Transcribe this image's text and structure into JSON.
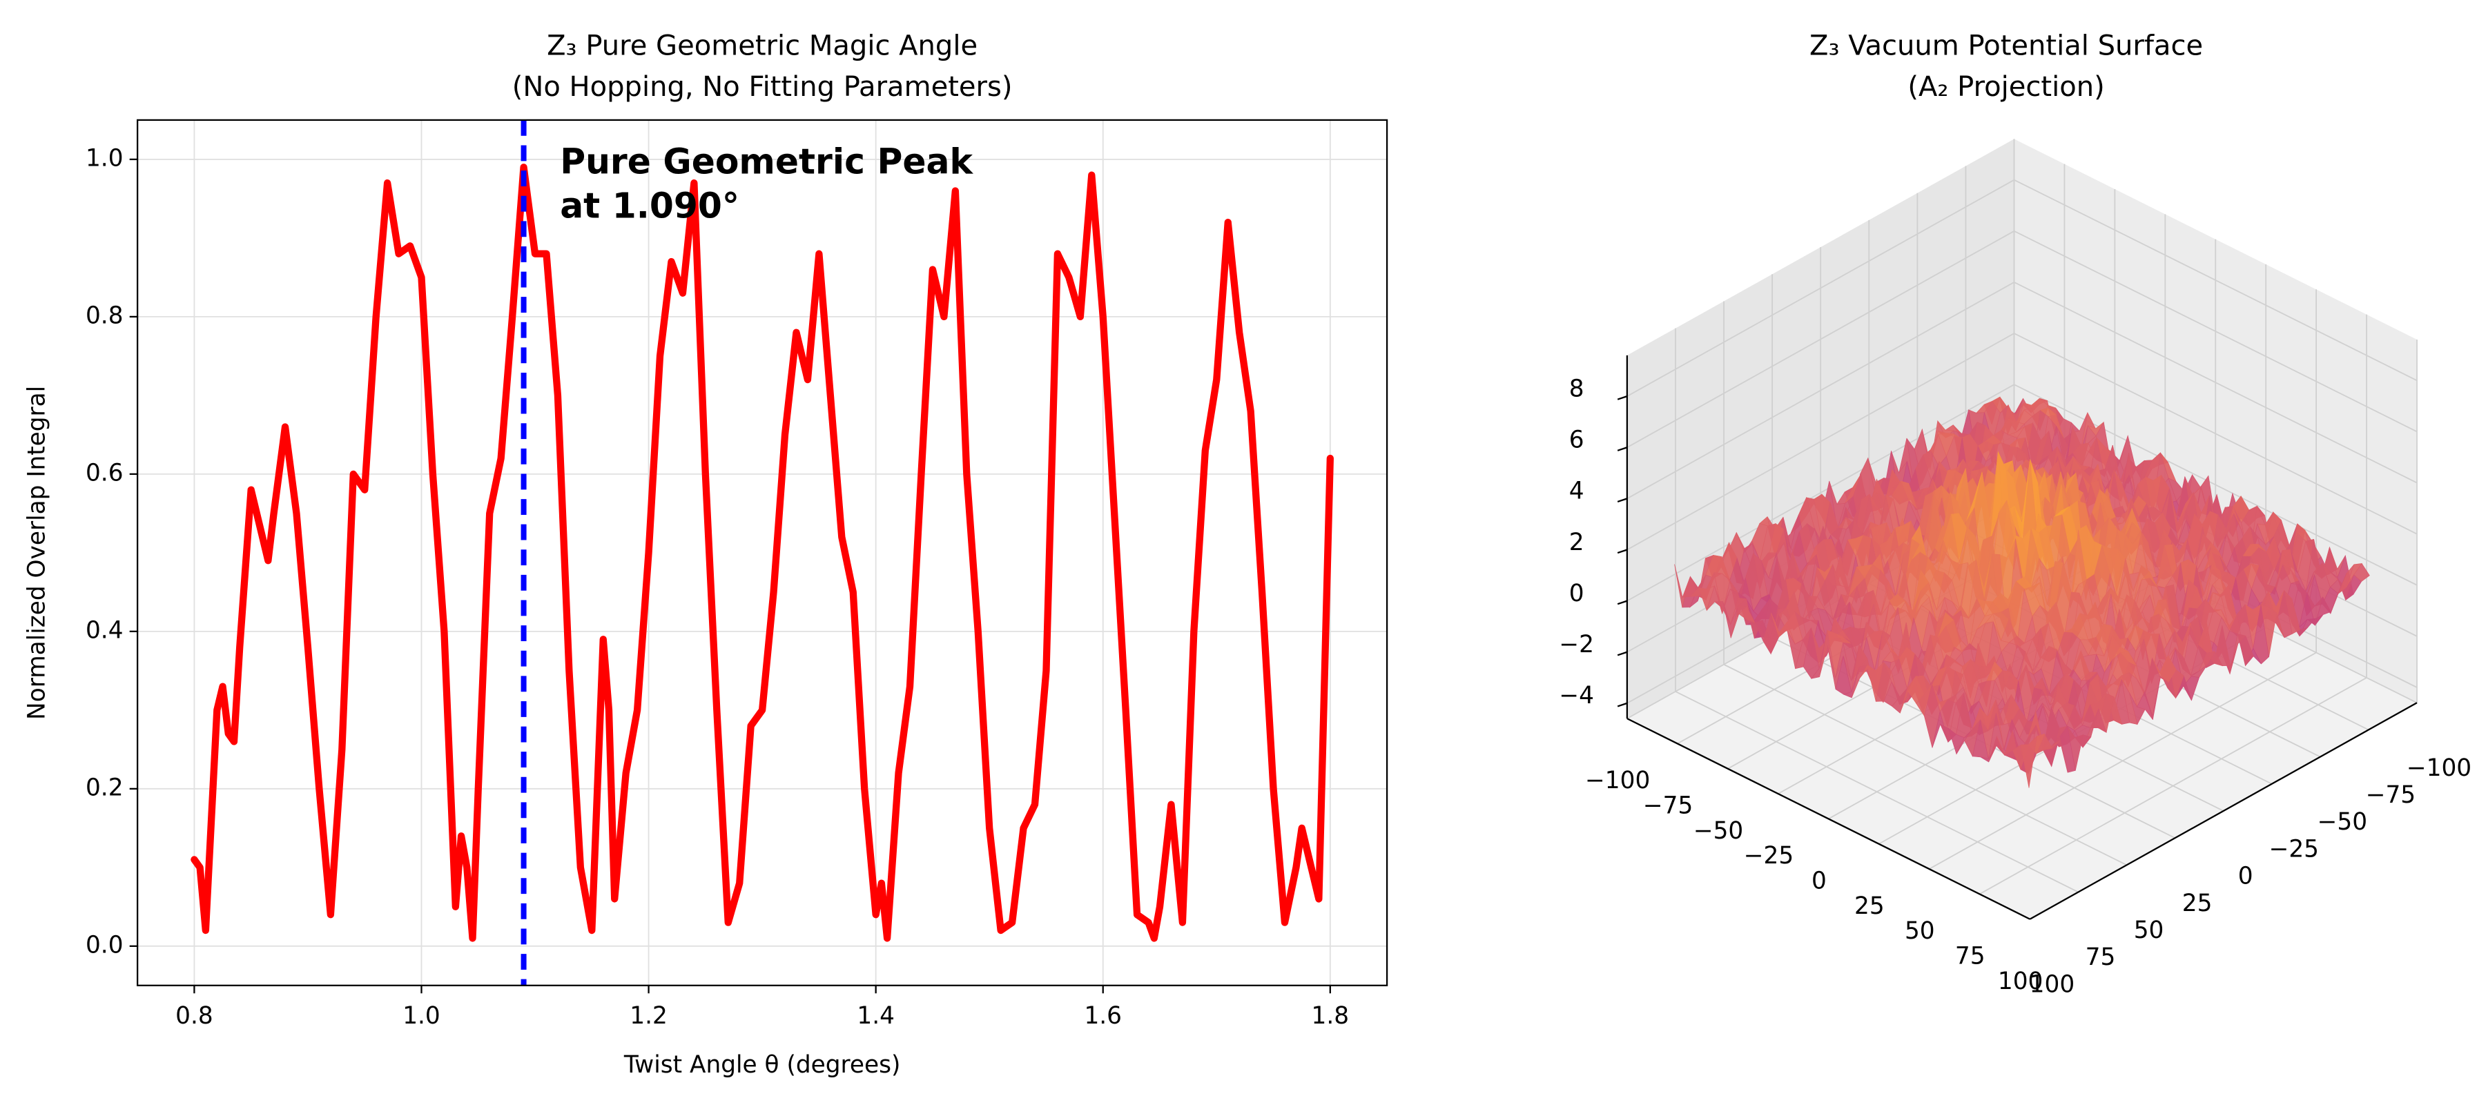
{
  "chart_data": [
    {
      "type": "line",
      "title": [
        "Z₃ Pure Geometric Magic Angle",
        "(No Hopping, No Fitting Parameters)"
      ],
      "xlabel": "Twist Angle θ (degrees)",
      "ylabel": "Normalized Overlap Integral",
      "color": "red",
      "x": [
        0.8,
        0.805,
        0.81,
        0.82,
        0.825,
        0.83,
        0.835,
        0.84,
        0.85,
        0.86,
        0.865,
        0.87,
        0.88,
        0.89,
        0.9,
        0.91,
        0.92,
        0.93,
        0.94,
        0.95,
        0.96,
        0.97,
        0.98,
        0.99,
        1.0,
        1.01,
        1.02,
        1.03,
        1.035,
        1.04,
        1.045,
        1.05,
        1.06,
        1.07,
        1.08,
        1.09,
        1.1,
        1.11,
        1.12,
        1.13,
        1.14,
        1.15,
        1.16,
        1.165,
        1.17,
        1.18,
        1.19,
        1.2,
        1.21,
        1.22,
        1.23,
        1.24,
        1.25,
        1.26,
        1.27,
        1.28,
        1.29,
        1.3,
        1.31,
        1.32,
        1.33,
        1.34,
        1.35,
        1.36,
        1.37,
        1.38,
        1.39,
        1.4,
        1.405,
        1.41,
        1.42,
        1.43,
        1.44,
        1.45,
        1.46,
        1.47,
        1.48,
        1.49,
        1.5,
        1.51,
        1.52,
        1.53,
        1.54,
        1.55,
        1.56,
        1.57,
        1.58,
        1.59,
        1.6,
        1.61,
        1.62,
        1.63,
        1.64,
        1.645,
        1.65,
        1.66,
        1.67,
        1.68,
        1.69,
        1.7,
        1.71,
        1.72,
        1.73,
        1.74,
        1.75,
        1.76,
        1.77,
        1.775,
        1.78,
        1.79,
        1.8
      ],
      "values": [
        0.11,
        0.1,
        0.02,
        0.3,
        0.33,
        0.27,
        0.26,
        0.38,
        0.58,
        0.52,
        0.49,
        0.55,
        0.66,
        0.55,
        0.38,
        0.2,
        0.04,
        0.25,
        0.6,
        0.58,
        0.8,
        0.97,
        0.88,
        0.89,
        0.85,
        0.6,
        0.4,
        0.05,
        0.14,
        0.1,
        0.01,
        0.2,
        0.55,
        0.62,
        0.8,
        0.99,
        0.88,
        0.88,
        0.7,
        0.35,
        0.1,
        0.02,
        0.39,
        0.3,
        0.06,
        0.22,
        0.3,
        0.5,
        0.75,
        0.87,
        0.83,
        0.97,
        0.6,
        0.3,
        0.03,
        0.08,
        0.28,
        0.3,
        0.45,
        0.65,
        0.78,
        0.72,
        0.88,
        0.7,
        0.52,
        0.45,
        0.2,
        0.04,
        0.08,
        0.01,
        0.22,
        0.33,
        0.6,
        0.86,
        0.8,
        0.96,
        0.6,
        0.4,
        0.15,
        0.02,
        0.03,
        0.15,
        0.18,
        0.35,
        0.88,
        0.85,
        0.8,
        0.98,
        0.8,
        0.55,
        0.3,
        0.04,
        0.03,
        0.01,
        0.05,
        0.18,
        0.03,
        0.4,
        0.63,
        0.72,
        0.92,
        0.78,
        0.68,
        0.45,
        0.2,
        0.03,
        0.1,
        0.15,
        0.12,
        0.06,
        0.62
      ],
      "annotation": {
        "x": 1.09,
        "color": "blue",
        "text": [
          "Pure Geometric Peak",
          "at 1.090°"
        ]
      },
      "xlim": [
        0.75,
        1.85
      ],
      "ylim": [
        -0.05,
        1.05
      ],
      "xticks": [
        0.8,
        {
          "value": 1,
          "label": "1.0"
        },
        1.2,
        1.4,
        1.6,
        1.8
      ],
      "yticks": [
        {
          "value": 0,
          "label": "0.0"
        },
        0.2,
        0.4,
        0.6,
        0.8,
        {
          "value": 1,
          "label": "1.0"
        }
      ],
      "grid": true
    },
    {
      "type": "surface3d",
      "title": [
        "Z₃ Vacuum Potential Surface",
        "(A₂ Projection)"
      ],
      "colormap": "plasma",
      "xlim": [
        -100,
        100
      ],
      "ylim": [
        -100,
        100
      ],
      "zlim": [
        -4.6,
        9.6
      ],
      "xticks": [
        {
          "value": -100,
          "label": "−100"
        },
        {
          "value": -75,
          "label": "−75"
        },
        {
          "value": -50,
          "label": "−50"
        },
        {
          "value": -25,
          "label": "−25"
        },
        0,
        25,
        50,
        75,
        100
      ],
      "yticks": [
        {
          "value": -100,
          "label": "−100"
        },
        {
          "value": -75,
          "label": "−75"
        },
        {
          "value": -50,
          "label": "−50"
        },
        {
          "value": -25,
          "label": "−25"
        },
        0,
        25,
        50,
        75,
        100
      ],
      "zticks": [
        {
          "value": -4,
          "label": "−4"
        },
        {
          "value": -2,
          "label": "−2"
        },
        0,
        2,
        4,
        6,
        8
      ]
    }
  ]
}
